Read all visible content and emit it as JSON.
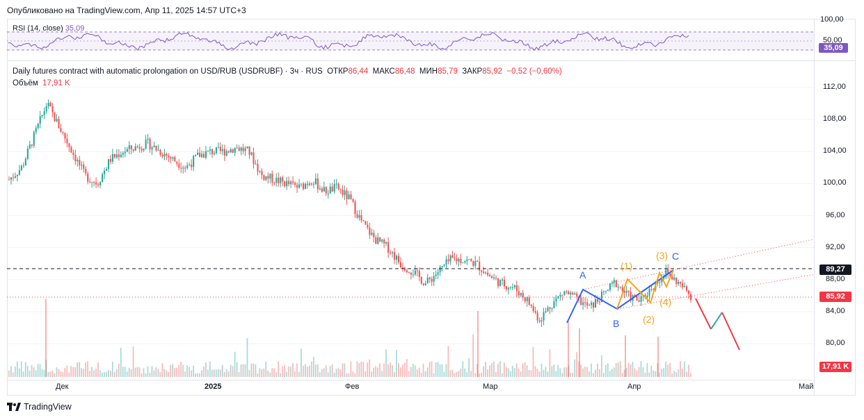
{
  "header": {
    "published": "Опубликовано на TradingView.com, Апр 11, 2025 14:57 UTC+3"
  },
  "rsi": {
    "label": "RSI (14, close)",
    "value": "35,09",
    "axis_ticks": [
      "100,00",
      "50,00"
    ],
    "color": "#7e57c2"
  },
  "symbol": {
    "title": "Daily futures contract with automatic prolongation on USD/RUB (USDRUBF) · 3ч · RUS",
    "open_label": "ОТКР",
    "open": "86,44",
    "high_label": "МАКС",
    "high": "86,48",
    "low_label": "МИН",
    "low": "85,79",
    "close_label": "ЗАКР",
    "close": "85,92",
    "change": "−0,52 (−0,60%)",
    "volume_label": "Объём",
    "volume": "17,91 K"
  },
  "price_axis": {
    "ticks": [
      "112,00",
      "108,00",
      "104,00",
      "100,00",
      "96,00",
      "92,00",
      "88,00",
      "84,00",
      "80,00"
    ],
    "badges": {
      "level": "89,27",
      "last": "85,92",
      "volume": "17,91 K"
    }
  },
  "time_axis": {
    "labels": [
      "Дек",
      "2025",
      "Фев",
      "Мар",
      "Апр",
      "Май"
    ]
  },
  "annotations": {
    "blue": [
      "A",
      "B",
      "C"
    ],
    "orange": [
      "(1)",
      "(2)",
      "(3)",
      "(4)"
    ]
  },
  "branding": {
    "logo_text": "TradingView"
  },
  "colors": {
    "up": "#26a69a",
    "down": "#ef5350",
    "blue": "#2962ff",
    "orange": "#f7a21b",
    "red": "#f23645"
  },
  "chart_data": {
    "type": "candlestick",
    "x": [
      "Дек",
      "2025",
      "Фев",
      "Мар",
      "Апр",
      "Май"
    ],
    "ylim": [
      80,
      113
    ],
    "price_path": [
      [
        0,
        100.5
      ],
      [
        1,
        102
      ],
      [
        2,
        106
      ],
      [
        3,
        110
      ],
      [
        4,
        107
      ],
      [
        5,
        104
      ],
      [
        6,
        101
      ],
      [
        7,
        100
      ],
      [
        8,
        103
      ],
      [
        9,
        104
      ],
      [
        10,
        104.5
      ],
      [
        11,
        105
      ],
      [
        12,
        104
      ],
      [
        13,
        103
      ],
      [
        14,
        102
      ],
      [
        15,
        103.5
      ],
      [
        16,
        104
      ],
      [
        17,
        104
      ],
      [
        18,
        104.5
      ],
      [
        19,
        104
      ],
      [
        20,
        101
      ],
      [
        21,
        100.5
      ],
      [
        22,
        100
      ],
      [
        23,
        99.5
      ],
      [
        24,
        100.5
      ],
      [
        25,
        99
      ],
      [
        26,
        99.5
      ],
      [
        27,
        98
      ],
      [
        28,
        95
      ],
      [
        29,
        93
      ],
      [
        30,
        92
      ],
      [
        31,
        90
      ],
      [
        32,
        89
      ],
      [
        33,
        87.5
      ],
      [
        34,
        89
      ],
      [
        35,
        90.5
      ],
      [
        36,
        90.5
      ],
      [
        37,
        90
      ],
      [
        38,
        88.5
      ],
      [
        39,
        87.5
      ],
      [
        40,
        87
      ],
      [
        41,
        85.5
      ],
      [
        42,
        83
      ],
      [
        43,
        85
      ],
      [
        44,
        86.5
      ],
      [
        45,
        85.5
      ],
      [
        46,
        84.5
      ],
      [
        47,
        86
      ],
      [
        48,
        87.7
      ],
      [
        49,
        86
      ],
      [
        50,
        85.3
      ],
      [
        51,
        87.2
      ],
      [
        52,
        88.9
      ],
      [
        53,
        87.6
      ],
      [
        54,
        86
      ]
    ],
    "forecast": [
      [
        86,
        82
      ],
      [
        82,
        84
      ],
      [
        84,
        79.5
      ]
    ],
    "volume_last": "17,91 K"
  }
}
